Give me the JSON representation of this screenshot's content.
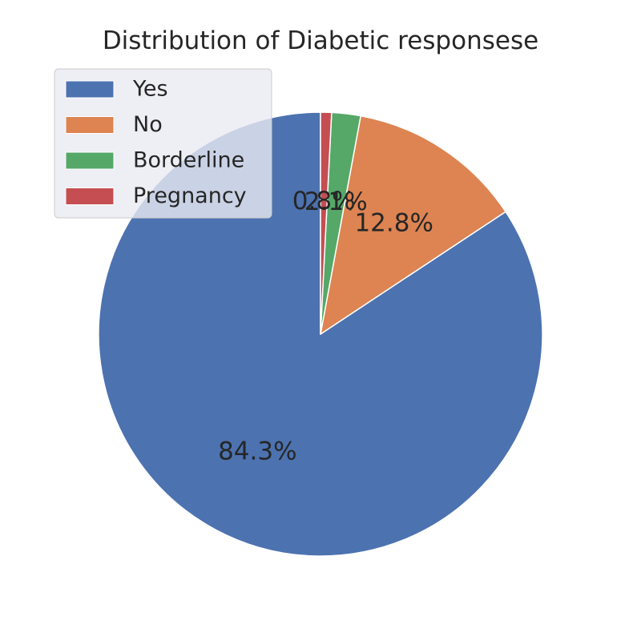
{
  "chart_data": {
    "type": "pie",
    "title": "Distribution of Diabetic responsese",
    "categories": [
      "Yes",
      "No",
      "Borderline",
      "Pregnancy"
    ],
    "values": [
      84.3,
      12.8,
      2.1,
      0.8
    ],
    "percent_labels": [
      "84.3%",
      "12.8%",
      "2.1%",
      "0.8%"
    ],
    "colors": [
      "#4c72b0",
      "#dd8452",
      "#55a868",
      "#c44e52"
    ],
    "start_angle_deg": 90,
    "direction": "counterclockwise",
    "legend": {
      "placement": "upper-left",
      "entries": [
        "Yes",
        "No",
        "Borderline",
        "Pregnancy"
      ]
    }
  }
}
